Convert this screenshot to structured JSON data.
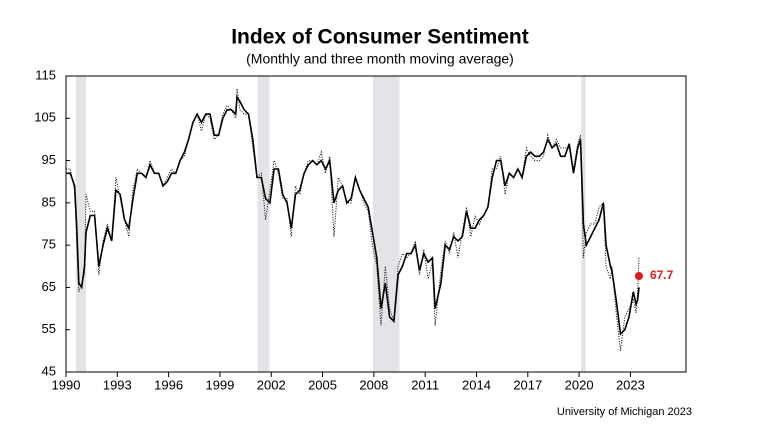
{
  "chart_data": {
    "type": "line",
    "title": "Index of Consumer Sentiment",
    "subtitle": "(Monthly and three month moving average)",
    "source": "University of Michigan 2023",
    "xlim": [
      1990,
      2026.25
    ],
    "xticks": [
      1990,
      1993,
      1996,
      1999,
      2002,
      2005,
      2008,
      2011,
      2014,
      2017,
      2020,
      2023
    ],
    "ylim": [
      45,
      115
    ],
    "yticks": [
      45,
      55,
      65,
      75,
      85,
      95,
      105,
      115
    ],
    "shaded_periods": [
      [
        1990.58,
        1991.17
      ],
      [
        2001.2,
        2001.9
      ],
      [
        2007.95,
        2009.5
      ],
      [
        2020.12,
        2020.37
      ]
    ],
    "shade_color": "#e4e4e8",
    "x": [
      1990.0,
      1990.25,
      1990.5,
      1990.62,
      1990.75,
      1990.92,
      1991.08,
      1991.17,
      1991.42,
      1991.67,
      1991.92,
      1992.17,
      1992.42,
      1992.67,
      1992.92,
      1993.17,
      1993.42,
      1993.67,
      1993.92,
      1994.17,
      1994.42,
      1994.67,
      1994.92,
      1995.17,
      1995.42,
      1995.67,
      1995.92,
      1996.17,
      1996.42,
      1996.67,
      1996.92,
      1997.17,
      1997.42,
      1997.67,
      1997.92,
      1998.17,
      1998.42,
      1998.67,
      1998.92,
      1999.17,
      1999.42,
      1999.67,
      1999.92,
      2000.0,
      2000.17,
      2000.42,
      2000.67,
      2000.92,
      2001.17,
      2001.42,
      2001.67,
      2001.92,
      2002.17,
      2002.42,
      2002.67,
      2002.92,
      2003.17,
      2003.42,
      2003.67,
      2003.92,
      2004.17,
      2004.42,
      2004.67,
      2004.92,
      2005.17,
      2005.42,
      2005.67,
      2005.92,
      2006.17,
      2006.42,
      2006.67,
      2006.92,
      2007.17,
      2007.42,
      2007.67,
      2007.92,
      2008.17,
      2008.42,
      2008.67,
      2008.92,
      2009.17,
      2009.42,
      2009.67,
      2009.92,
      2010.17,
      2010.42,
      2010.67,
      2010.92,
      2011.17,
      2011.42,
      2011.58,
      2011.92,
      2012.17,
      2012.42,
      2012.67,
      2012.92,
      2013.17,
      2013.42,
      2013.67,
      2013.92,
      2014.17,
      2014.42,
      2014.67,
      2014.92,
      2015.17,
      2015.42,
      2015.67,
      2015.92,
      2016.17,
      2016.42,
      2016.67,
      2016.92,
      2017.17,
      2017.42,
      2017.67,
      2017.92,
      2018.17,
      2018.42,
      2018.67,
      2018.92,
      2019.17,
      2019.42,
      2019.67,
      2019.92,
      2020.08,
      2020.25,
      2020.42,
      2020.67,
      2020.92,
      2021.17,
      2021.42,
      2021.58,
      2021.83,
      2021.92,
      2022.17,
      2022.42,
      2022.67,
      2022.92,
      2023.17,
      2023.33,
      2023.42,
      2023.5
    ],
    "series": [
      {
        "style": "dotted",
        "color": "#000000",
        "values": [
          93,
          93,
          88,
          76,
          64,
          66,
          68,
          87,
          83,
          83,
          68,
          76,
          80,
          76,
          91,
          86,
          81,
          77,
          88,
          93,
          92,
          91,
          95,
          92,
          92,
          89,
          91,
          93,
          92,
          95,
          96,
          100,
          104,
          106,
          102,
          106,
          105,
          100,
          101,
          106,
          108,
          107,
          105,
          112,
          107,
          106,
          106,
          98,
          91,
          92,
          81,
          88,
          95,
          92,
          86,
          86,
          77,
          89,
          87,
          92,
          95,
          95,
          94,
          97,
          92,
          96,
          77,
          91,
          89,
          85,
          85,
          91,
          88,
          85,
          83,
          75,
          70,
          56,
          70,
          60,
          57,
          70,
          73,
          72,
          73,
          76,
          68,
          74,
          67,
          71,
          56,
          69,
          76,
          73,
          78,
          72,
          78,
          84,
          77,
          82,
          80,
          82,
          84,
          93,
          93,
          96,
          87,
          92,
          91,
          93,
          91,
          98,
          96,
          95,
          95,
          96,
          101,
          98,
          100,
          98,
          98,
          98,
          93,
          99,
          101,
          72,
          78,
          80,
          80,
          84,
          85,
          70,
          67,
          70,
          59,
          50,
          58,
          60,
          62,
          59,
          64,
          72
        ]
      },
      {
        "style": "solid",
        "color": "#000000",
        "values": [
          92,
          92,
          89,
          80,
          66,
          65,
          70,
          78,
          82,
          82,
          70,
          75,
          79,
          76,
          88,
          87,
          81,
          79,
          86,
          92,
          92,
          91,
          94,
          92,
          92,
          89,
          90,
          92,
          92,
          95,
          97,
          100,
          104,
          106,
          104,
          106,
          106,
          101,
          101,
          105,
          107,
          107,
          106,
          110,
          109,
          107,
          106,
          100,
          91,
          91,
          86,
          85,
          93,
          93,
          87,
          85,
          79,
          87,
          88,
          92,
          94,
          95,
          94,
          95,
          93,
          95,
          85,
          88,
          89,
          85,
          86,
          91,
          88,
          86,
          84,
          78,
          72,
          60,
          66,
          58,
          57,
          68,
          70,
          73,
          73,
          75,
          69,
          73,
          71,
          72,
          60,
          66,
          75,
          74,
          77,
          76,
          77,
          83,
          79,
          79,
          81,
          82,
          84,
          91,
          95,
          95,
          89,
          92,
          91,
          93,
          91,
          96,
          97,
          96,
          96,
          97,
          100,
          98,
          99,
          96,
          96,
          99,
          92,
          98,
          100,
          80,
          75,
          77,
          79,
          81,
          85,
          75,
          70,
          69,
          62,
          54,
          55,
          58,
          64,
          61,
          62,
          65
        ]
      }
    ],
    "annotation": {
      "x": 2023.5,
      "value": 67.7,
      "color": "#e0191e"
    }
  }
}
